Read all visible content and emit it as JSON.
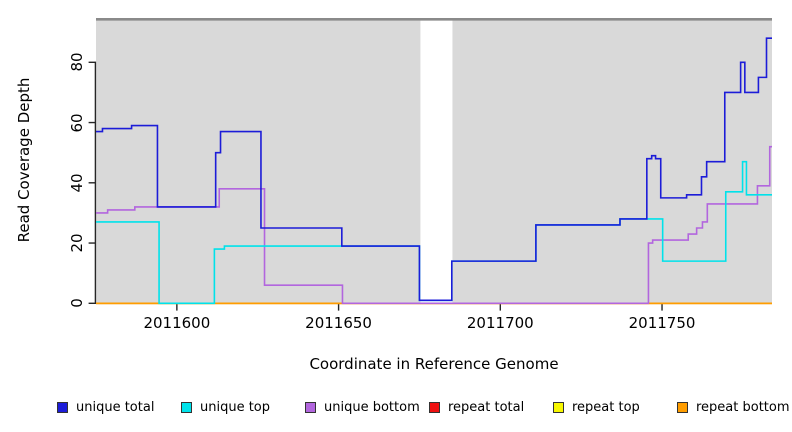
{
  "chart_data": {
    "type": "line",
    "subtype": "step",
    "title": "",
    "xlabel": "Coordinate in Reference Genome",
    "ylabel": "Read Coverage Depth",
    "xlim": [
      2011575,
      2011784
    ],
    "ylim": [
      0,
      94
    ],
    "grid": false,
    "legend_position": "bottom",
    "panel_background": "#d9d9d9",
    "top_border_color": "#8a8a8a",
    "gap_region": {
      "x_start": 2011675.3,
      "x_end": 2011685.2,
      "color": "#ffffff"
    },
    "x_ticks": [
      {
        "value": 2011600,
        "label": "2011600"
      },
      {
        "value": 2011650,
        "label": "2011650"
      },
      {
        "value": 2011700,
        "label": "2011700"
      },
      {
        "value": 2011750,
        "label": "2011750"
      }
    ],
    "y_ticks": [
      {
        "value": 0,
        "label": "0"
      },
      {
        "value": 20,
        "label": "20"
      },
      {
        "value": 40,
        "label": "40"
      },
      {
        "value": 60,
        "label": "60"
      },
      {
        "value": 80,
        "label": "80"
      }
    ],
    "series": [
      {
        "name": "repeat total",
        "color": "#ee1111",
        "steps": [
          [
            2011575,
            0
          ]
        ]
      },
      {
        "name": "repeat top",
        "color": "#f7f700",
        "steps": [
          [
            2011575,
            0
          ]
        ]
      },
      {
        "name": "repeat bottom",
        "color": "#ff9d00",
        "steps": [
          [
            2011575,
            0
          ]
        ]
      },
      {
        "name": "unique bottom",
        "color": "#b266de",
        "steps": [
          [
            2011575,
            30
          ],
          [
            2011578.6,
            31
          ],
          [
            2011587,
            32
          ],
          [
            2011613.1,
            38
          ],
          [
            2011627.1,
            6
          ],
          [
            2011651.2,
            0
          ],
          [
            2011745.8,
            20
          ],
          [
            2011747.1,
            21
          ],
          [
            2011758.1,
            23
          ],
          [
            2011760.7,
            25
          ],
          [
            2011762.5,
            27
          ],
          [
            2011764,
            33
          ],
          [
            2011779.5,
            39
          ],
          [
            2011783.3,
            52
          ]
        ]
      },
      {
        "name": "unique top",
        "color": "#00e2ea",
        "steps": [
          [
            2011575,
            27
          ],
          [
            2011594.5,
            0
          ],
          [
            2011611.6,
            18
          ],
          [
            2011614.7,
            19
          ],
          [
            2011675,
            1
          ],
          [
            2011685,
            14
          ],
          [
            2011711,
            26
          ],
          [
            2011737,
            28
          ],
          [
            2011750.2,
            14
          ],
          [
            2011769.7,
            37
          ],
          [
            2011774.9,
            47
          ],
          [
            2011776.1,
            36
          ]
        ]
      },
      {
        "name": "unique total",
        "color": "#1c1cd8",
        "steps": [
          [
            2011575,
            57
          ],
          [
            2011577,
            58
          ],
          [
            2011586,
            59
          ],
          [
            2011594,
            32
          ],
          [
            2011612,
            50
          ],
          [
            2011613.5,
            57
          ],
          [
            2011626,
            25
          ],
          [
            2011651,
            19
          ],
          [
            2011675,
            1
          ],
          [
            2011685,
            14
          ],
          [
            2011711,
            26
          ],
          [
            2011737,
            28
          ],
          [
            2011745.3,
            48
          ],
          [
            2011746.8,
            49
          ],
          [
            2011748,
            48
          ],
          [
            2011749.6,
            35
          ],
          [
            2011757.6,
            36
          ],
          [
            2011762.2,
            42
          ],
          [
            2011763.8,
            47
          ],
          [
            2011769.4,
            70
          ],
          [
            2011774.3,
            80
          ],
          [
            2011775.6,
            70
          ],
          [
            2011779.8,
            75
          ],
          [
            2011782.3,
            88
          ]
        ]
      }
    ]
  },
  "legend": {
    "items": [
      {
        "label": "unique total",
        "color": "#1c1cd8"
      },
      {
        "label": "unique top",
        "color": "#00e2ea"
      },
      {
        "label": "unique bottom",
        "color": "#b266de"
      },
      {
        "label": "repeat total",
        "color": "#ee1111"
      },
      {
        "label": "repeat top",
        "color": "#f7f700"
      },
      {
        "label": "repeat bottom",
        "color": "#ff9d00"
      }
    ]
  }
}
